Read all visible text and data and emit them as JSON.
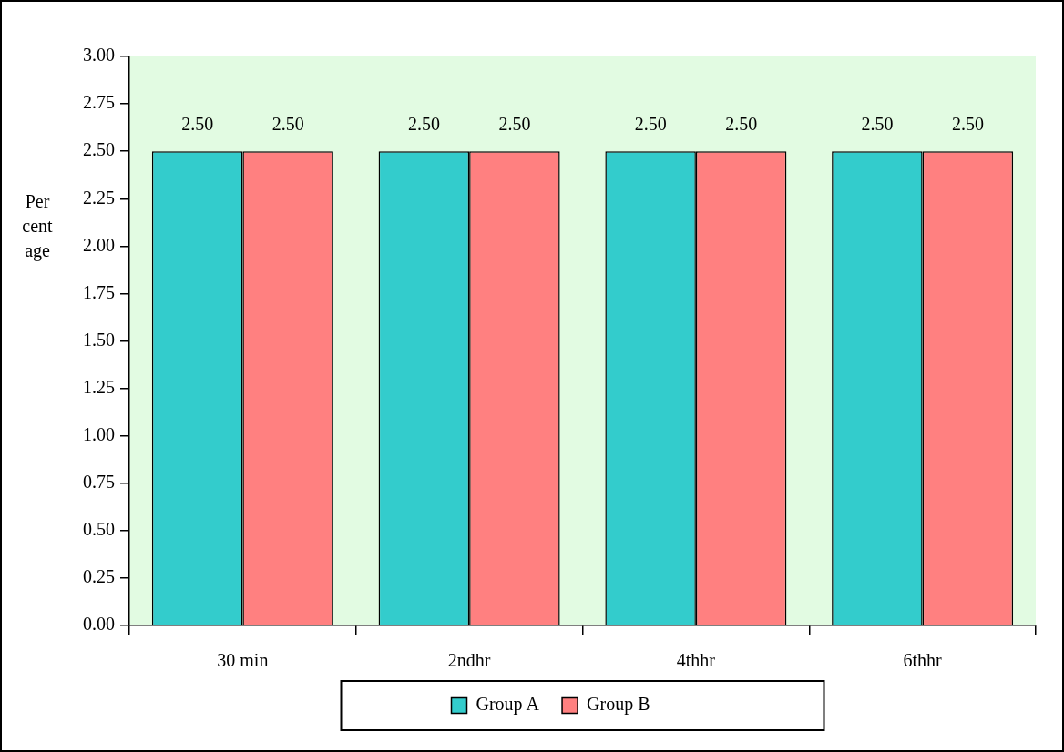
{
  "chart_data": {
    "type": "bar",
    "ylabel": "Per cent age",
    "categories": [
      "30 min",
      "2ndhr",
      "4thhr",
      "6thhr"
    ],
    "series": [
      {
        "name": "Group A",
        "color": "#33cccc",
        "values": [
          2.5,
          2.5,
          2.5,
          2.5
        ],
        "value_labels": [
          "2.50",
          "2.50",
          "2.50",
          "2.50"
        ]
      },
      {
        "name": "Group B",
        "color": "#ff8080",
        "values": [
          2.5,
          2.5,
          2.5,
          2.5
        ],
        "value_labels": [
          "2.50",
          "2.50",
          "2.50",
          "2.50"
        ]
      }
    ],
    "ylim": [
      0,
      3
    ],
    "yticks": [
      {
        "value": 0,
        "label": "0.00"
      },
      {
        "value": 0.25,
        "label": "0.25"
      },
      {
        "value": 0.5,
        "label": "0.50"
      },
      {
        "value": 0.75,
        "label": "0.75"
      },
      {
        "value": 1,
        "label": "1.00"
      },
      {
        "value": 1.25,
        "label": "1.25"
      },
      {
        "value": 1.5,
        "label": "1.50"
      },
      {
        "value": 1.75,
        "label": "1.75"
      },
      {
        "value": 2,
        "label": "2.00"
      },
      {
        "value": 2.25,
        "label": "2.25"
      },
      {
        "value": 2.5,
        "label": "2.50"
      },
      {
        "value": 2.75,
        "label": "2.75"
      },
      {
        "value": 3,
        "label": "3.00"
      }
    ],
    "grid": false,
    "legend": "bottom"
  }
}
